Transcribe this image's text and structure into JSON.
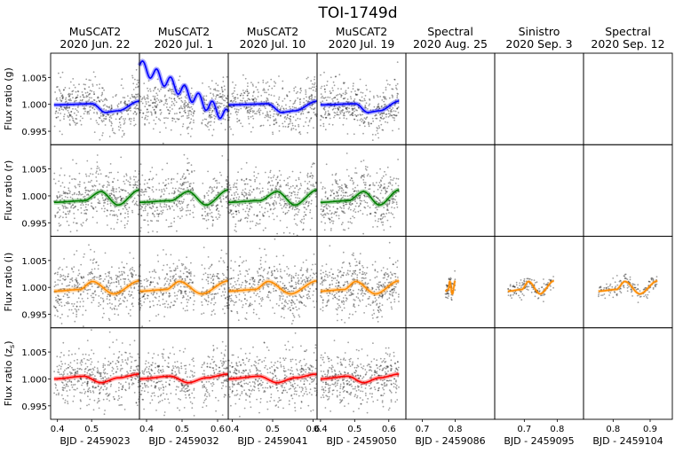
{
  "chart_data": {
    "type": "scatter",
    "title": "TOI-1749d",
    "ylim": [
      0.9925,
      1.0095
    ],
    "yticks": [
      0.995,
      1.0,
      1.005
    ],
    "ytick_labels": [
      "0.995",
      "1.000",
      "1.005"
    ],
    "bands": [
      {
        "key": "g",
        "ylabel": "Flux ratio (g)",
        "color": "#0000ff"
      },
      {
        "key": "r",
        "ylabel": "Flux ratio (r)",
        "color": "#008000"
      },
      {
        "key": "i",
        "ylabel": "Flux ratio (i)",
        "color": "#ff8c00"
      },
      {
        "key": "zs",
        "ylabel": "Flux ratio (zs)",
        "ylabel_main": "Flux ratio (z",
        "ylabel_sub": "s",
        "ylabel_end": ")",
        "color": "#ff0000"
      }
    ],
    "columns": [
      {
        "instrument": "MuSCAT2",
        "date": "2020 Jun. 22",
        "xlabel": "BJD - 2459023",
        "xlim": [
          0.38,
          0.64
        ],
        "xticks": [
          0.4,
          0.5
        ],
        "xtick_labels": [
          "0.4",
          "0.5"
        ],
        "data_range": [
          0.39,
          0.64
        ],
        "center": 0.485,
        "bands": [
          "g",
          "r",
          "i",
          "zs"
        ]
      },
      {
        "instrument": "MuSCAT2",
        "date": "2020 Jul. 1",
        "xlabel": "BJD - 2459032",
        "xlim": [
          0.38,
          0.63
        ],
        "xticks": [
          0.4,
          0.5,
          0.6
        ],
        "xtick_labels": [
          "0.4",
          "0.5",
          "0.6"
        ],
        "data_range": [
          0.38,
          0.63
        ],
        "center": 0.49,
        "gap": [
          0.535,
          0.555
        ],
        "bands": [
          "g",
          "r",
          "i",
          "zs"
        ]
      },
      {
        "instrument": "MuSCAT2",
        "date": "2020 Jul. 10",
        "xlabel": "BJD - 2459041",
        "xlim": [
          0.39,
          0.61
        ],
        "xticks": [
          0.4,
          0.5,
          0.6
        ],
        "xtick_labels": [
          "0.4",
          "0.5",
          "0.6"
        ],
        "data_range": [
          0.39,
          0.61
        ],
        "center": 0.49,
        "bands": [
          "g",
          "r",
          "i",
          "zs"
        ]
      },
      {
        "instrument": "MuSCAT2",
        "date": "2020 Jul. 19",
        "xlabel": "BJD - 2459050",
        "xlim": [
          0.39,
          0.65
        ],
        "xticks": [
          0.4,
          0.5,
          0.6
        ],
        "xtick_labels": [
          "0.4",
          "0.5",
          "0.6"
        ],
        "data_range": [
          0.4,
          0.63
        ],
        "center": 0.54,
        "bands": [
          "g",
          "r",
          "i",
          "zs"
        ]
      },
      {
        "instrument": "Spectral",
        "date": "2020 Aug. 25",
        "xlabel": "BJD - 2459086",
        "xlim": [
          0.65,
          0.92
        ],
        "xticks": [
          0.7,
          0.8
        ],
        "xtick_labels": [
          "0.7",
          "0.8"
        ],
        "data_range": [
          0.77,
          0.8
        ],
        "center": 0.785,
        "bands": [
          "i"
        ]
      },
      {
        "instrument": "Sinistro",
        "date": "2020 Sep. 3",
        "xlabel": "BJD - 2459095",
        "xlim": [
          0.61,
          0.88
        ],
        "xticks": [
          0.7,
          0.8
        ],
        "xtick_labels": [
          "0.7",
          "0.8"
        ],
        "data_range": [
          0.65,
          0.79
        ],
        "center": 0.75,
        "bands": [
          "i"
        ]
      },
      {
        "instrument": "Spectral",
        "date": "2020 Sep. 12",
        "xlabel": "BJD - 2459104",
        "xlim": [
          0.72,
          0.96
        ],
        "xticks": [
          0.8,
          0.9
        ],
        "xtick_labels": [
          "0.8",
          "0.9"
        ],
        "data_range": [
          0.76,
          0.92
        ],
        "center": 0.835,
        "bands": [
          "i"
        ]
      }
    ],
    "model_anchors": {
      "g": [
        [
          0.0,
          0.9999
        ],
        [
          0.45,
          1.0001
        ],
        [
          0.6,
          0.9985
        ],
        [
          0.75,
          0.9988
        ],
        [
          1.0,
          1.0006
        ]
      ],
      "r": [
        [
          0.0,
          0.9988
        ],
        [
          0.35,
          0.9991
        ],
        [
          0.55,
          1.0008
        ],
        [
          0.75,
          0.9983
        ],
        [
          1.0,
          1.0011
        ]
      ],
      "i": [
        [
          0.0,
          0.9993
        ],
        [
          0.3,
          0.9996
        ],
        [
          0.45,
          1.0011
        ],
        [
          0.7,
          0.9988
        ],
        [
          1.0,
          1.0012
        ]
      ],
      "zs": [
        [
          0.0,
          1.0
        ],
        [
          0.35,
          1.0005
        ],
        [
          0.55,
          0.9993
        ],
        [
          0.75,
          1.0002
        ],
        [
          1.0,
          1.0009
        ]
      ]
    }
  }
}
